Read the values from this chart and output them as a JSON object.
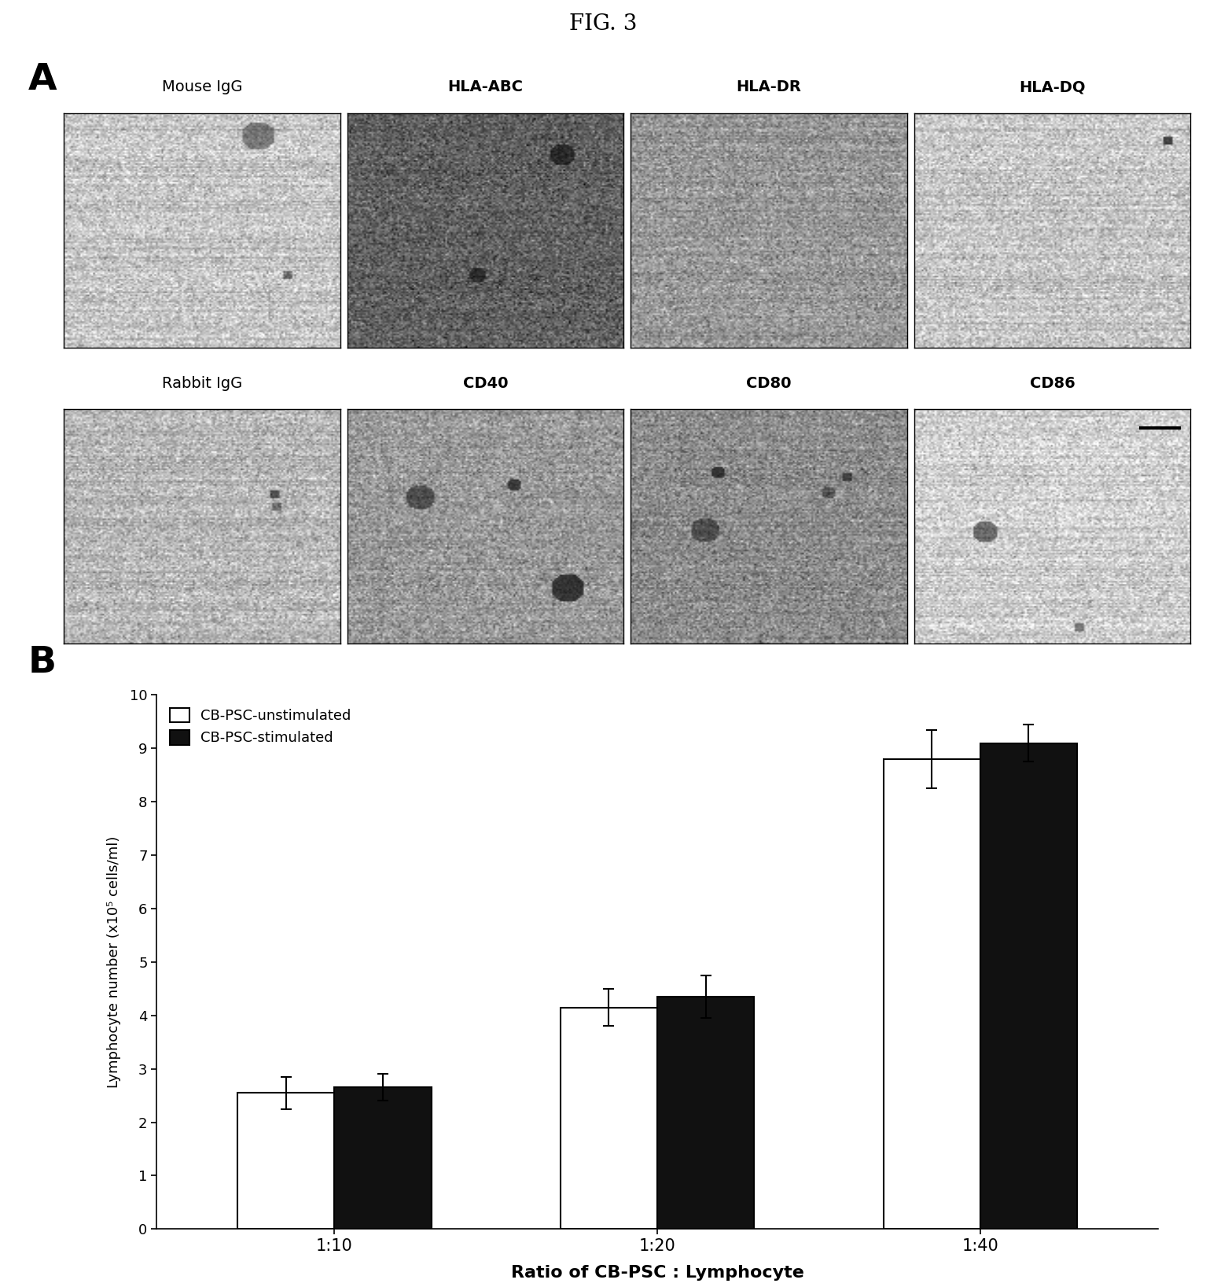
{
  "fig_title": "FIG. 3",
  "panel_A_label": "A",
  "panel_B_label": "B",
  "row1_labels": [
    "Mouse IgG",
    "HLA-ABC",
    "HLA-DR",
    "HLA-DQ"
  ],
  "row2_labels": [
    "Rabbit IgG",
    "CD40",
    "CD80",
    "CD86"
  ],
  "row1_label_bold": [
    false,
    true,
    true,
    true
  ],
  "row2_label_bold": [
    false,
    true,
    true,
    true
  ],
  "bar_categories": [
    "1:10",
    "1:20",
    "1:40"
  ],
  "unstimulated_values": [
    2.55,
    4.15,
    8.8
  ],
  "stimulated_values": [
    2.65,
    4.35,
    9.1
  ],
  "unstimulated_errors": [
    0.3,
    0.35,
    0.55
  ],
  "stimulated_errors": [
    0.25,
    0.4,
    0.35
  ],
  "ylabel": "Lymphocyte number (x10⁵ cells/ml)",
  "xlabel": "Ratio of CB-PSC : Lymphocyte",
  "ylim": [
    0,
    10
  ],
  "yticks": [
    0,
    1,
    2,
    3,
    4,
    5,
    6,
    7,
    8,
    9,
    10
  ],
  "legend_unstimulated": "CB-PSC-unstimulated",
  "legend_stimulated": "CB-PSC-stimulated",
  "bar_width": 0.3,
  "background_color": "#ffffff",
  "bar_color_unstimulated": "#ffffff",
  "bar_color_stimulated": "#111111",
  "bar_edge_color": "#000000",
  "row1_base_grays": [
    0.78,
    0.38,
    0.6,
    0.78
  ],
  "row2_base_grays": [
    0.72,
    0.6,
    0.55,
    0.82
  ],
  "img_noise_std": 0.1
}
